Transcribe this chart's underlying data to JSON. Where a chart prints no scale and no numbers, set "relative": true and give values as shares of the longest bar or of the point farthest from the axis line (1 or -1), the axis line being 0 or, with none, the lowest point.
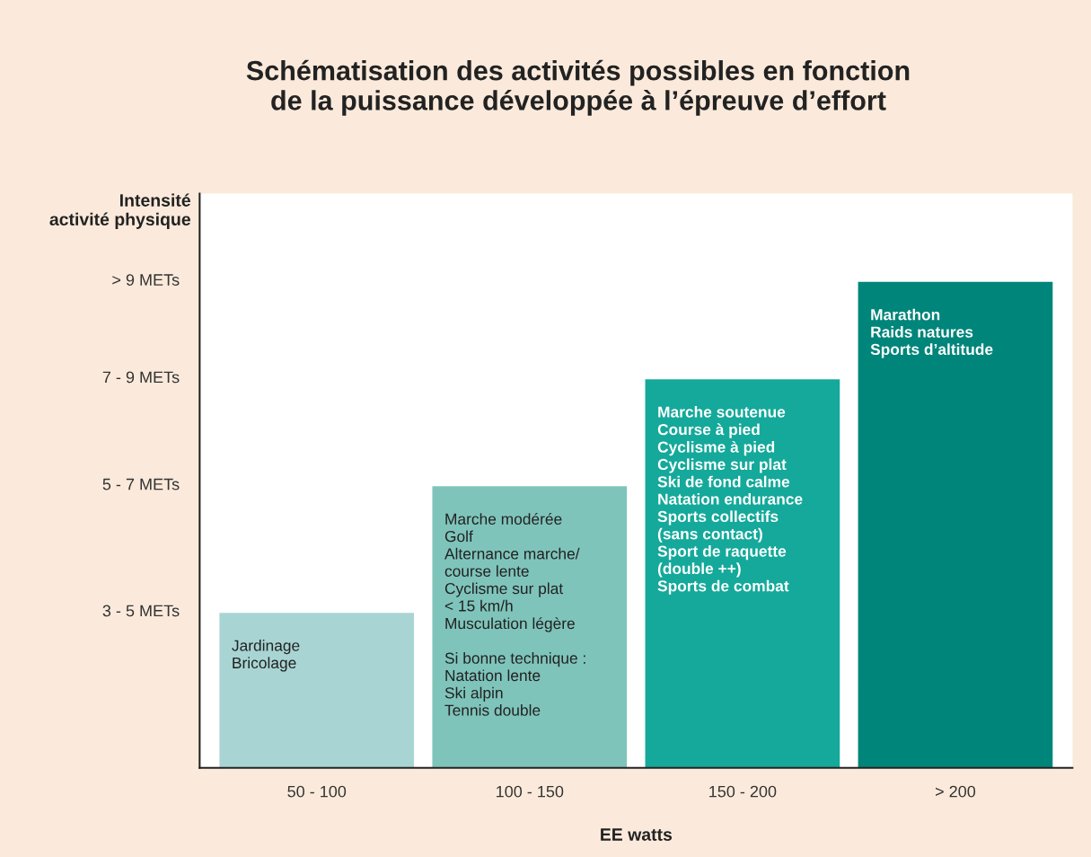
{
  "chart_data": {
    "type": "bar",
    "title": "Schématisation des activités possibles en fonction\nde la puissance développée à l’épreuve d’effort",
    "xlabel": "EE watts",
    "ylabel": "Intensité\nactivité physique",
    "relative": true,
    "categories": [
      "50 - 100",
      "100 - 150",
      "150 - 200",
      "> 200"
    ],
    "values": [
      0.32,
      0.58,
      0.8,
      1.0
    ],
    "colors": [
      "#a8d5d3",
      "#7fc4bb",
      "#14a99a",
      "#00857a"
    ],
    "annotations": [
      "3 - 5 METs",
      "5 - 7 METs",
      "7 - 9 METs",
      "> 9 METs",
      "Jardinage\nBricolage",
      "Marche modérée\nGolf\nAlternance marche/\ncourse lente\nCyclisme sur plat\n< 15 km/h\nMusculation légère\n\nSi bonne technique :\nNatation lente\nSki alpin\nTennis double",
      "Marche soutenue\nCourse à pied\nCyclisme à pied\nCyclisme sur plat\nSki de fond calme\nNatation endurance\nSports collectifs\n(sans contact)\nSport de raquette\n(double ++)\nSports de combat",
      "Marathon\nRaids natures\nSports d’altitude"
    ],
    "grid": false,
    "legend": false
  }
}
